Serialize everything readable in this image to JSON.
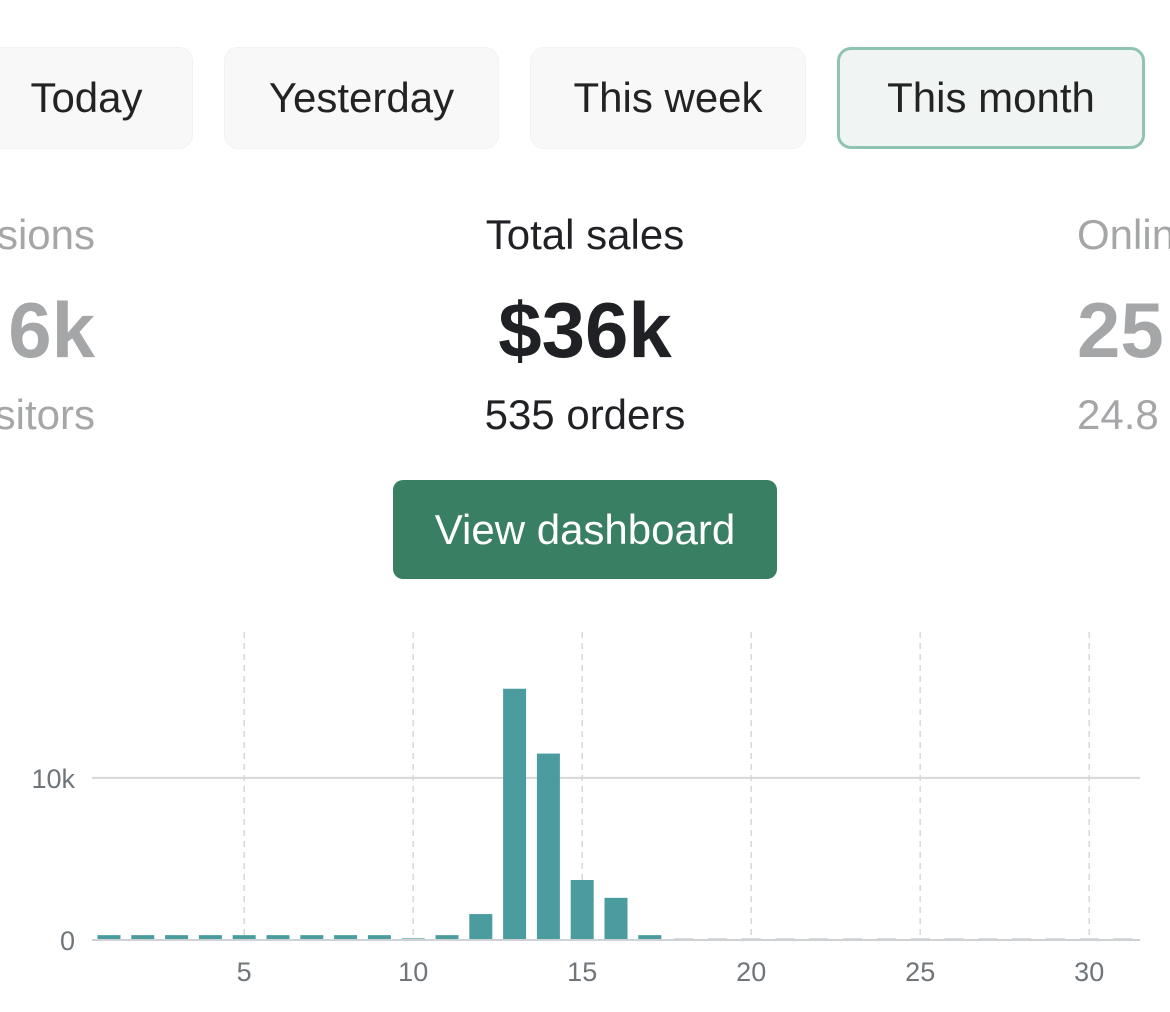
{
  "tabs": [
    {
      "label": "Today",
      "active": false
    },
    {
      "label": "Yesterday",
      "active": false
    },
    {
      "label": "This week",
      "active": false
    },
    {
      "label": "This month",
      "active": true
    }
  ],
  "metrics": {
    "left": {
      "label": "sions",
      "value": "6k",
      "sub": "sitors"
    },
    "center": {
      "label": "Total sales",
      "value": "$36k",
      "sub": "535 orders"
    },
    "right": {
      "label": "Onlin",
      "value": "25",
      "sub": "24.8"
    }
  },
  "button": {
    "label": "View dashboard"
  },
  "colors": {
    "accent": "#397f64",
    "bar": "#4a9c9e",
    "active_tab_border": "#8fc4b0",
    "active_tab_bg": "#f0f5f3"
  },
  "chart_data": {
    "type": "bar",
    "x": [
      1,
      2,
      3,
      4,
      5,
      6,
      7,
      8,
      9,
      10,
      11,
      12,
      13,
      14,
      15,
      16,
      17,
      18,
      19,
      20,
      21,
      22,
      23,
      24,
      25,
      26,
      27,
      28,
      29,
      30,
      31
    ],
    "values": [
      300,
      300,
      300,
      300,
      300,
      300,
      300,
      300,
      300,
      100,
      300,
      1600,
      15500,
      11500,
      3700,
      2600,
      300,
      0,
      0,
      0,
      0,
      0,
      0,
      0,
      0,
      0,
      0,
      0,
      0,
      0,
      0
    ],
    "xticks": [
      5,
      10,
      15,
      20,
      25,
      30
    ],
    "xtick_labels": [
      "5",
      "10",
      "15",
      "20",
      "25",
      "30"
    ],
    "yticks": [
      0,
      10000
    ],
    "ytick_labels": [
      "0",
      "10k"
    ],
    "ylim": [
      0,
      19000
    ],
    "grid": "x dashed; y solid",
    "title": "",
    "xlabel": "",
    "ylabel": ""
  }
}
